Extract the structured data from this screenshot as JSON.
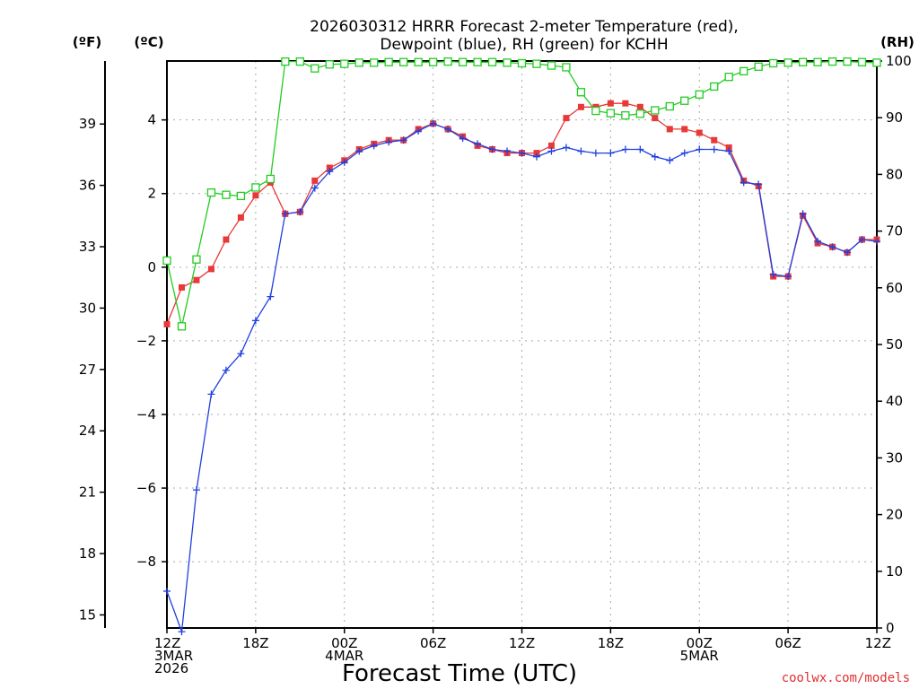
{
  "chart_data": {
    "type": "line",
    "title_line1": "2026030312 HRRR Forecast 2-meter Temperature (red),",
    "title_line2": "Dewpoint (blue), RH (green) for KCHH",
    "xlabel": "Forecast Time (UTC)",
    "credit": "coolwx.com/models",
    "left_unit_f": "(ºF)",
    "left_unit_c": "(ºC)",
    "right_unit": "(RH)",
    "x_range_hours": [
      0,
      48
    ],
    "celsius_range": [
      -9.8,
      5.6
    ],
    "rh_range": [
      0,
      100
    ],
    "x_ticks": [
      {
        "hour": 0,
        "line1": "12Z",
        "line2": "3MAR",
        "line3": "2026"
      },
      {
        "hour": 6,
        "line1": "18Z",
        "line2": "",
        "line3": ""
      },
      {
        "hour": 12,
        "line1": "00Z",
        "line2": "4MAR",
        "line3": ""
      },
      {
        "hour": 18,
        "line1": "06Z",
        "line2": "",
        "line3": ""
      },
      {
        "hour": 24,
        "line1": "12Z",
        "line2": "",
        "line3": ""
      },
      {
        "hour": 30,
        "line1": "18Z",
        "line2": "",
        "line3": ""
      },
      {
        "hour": 36,
        "line1": "00Z",
        "line2": "5MAR",
        "line3": ""
      },
      {
        "hour": 42,
        "line1": "06Z",
        "line2": "",
        "line3": ""
      },
      {
        "hour": 48,
        "line1": "12Z",
        "line2": "",
        "line3": ""
      }
    ],
    "celsius_ticks": [
      {
        "value": 4,
        "label": "4"
      },
      {
        "value": 2,
        "label": "2"
      },
      {
        "value": 0,
        "label": "0"
      },
      {
        "value": -2,
        "label": "−2"
      },
      {
        "value": -4,
        "label": "−4"
      },
      {
        "value": -6,
        "label": "−6"
      },
      {
        "value": -8,
        "label": "−8"
      }
    ],
    "fahrenheit_ticks": [
      {
        "value": 39,
        "label": "39"
      },
      {
        "value": 36,
        "label": "36"
      },
      {
        "value": 33,
        "label": "33"
      },
      {
        "value": 30,
        "label": "30"
      },
      {
        "value": 27,
        "label": "27"
      },
      {
        "value": 24,
        "label": "24"
      },
      {
        "value": 21,
        "label": "21"
      },
      {
        "value": 18,
        "label": "18"
      },
      {
        "value": 15,
        "label": "15"
      }
    ],
    "rh_ticks": [
      {
        "value": 100,
        "label": "100"
      },
      {
        "value": 90,
        "label": "90"
      },
      {
        "value": 80,
        "label": "80"
      },
      {
        "value": 70,
        "label": "70"
      },
      {
        "value": 60,
        "label": "60"
      },
      {
        "value": 50,
        "label": "50"
      },
      {
        "value": 40,
        "label": "40"
      },
      {
        "value": 30,
        "label": "30"
      },
      {
        "value": 20,
        "label": "20"
      },
      {
        "value": 10,
        "label": "10"
      },
      {
        "value": 0,
        "label": "0"
      }
    ],
    "series": [
      {
        "name": "Temperature",
        "units": "C",
        "color": "#e83838",
        "marker": "filled-square",
        "values": [
          -1.55,
          -0.55,
          -0.35,
          -0.05,
          0.75,
          1.35,
          1.95,
          2.3,
          1.45,
          1.5,
          2.35,
          2.7,
          2.9,
          3.2,
          3.35,
          3.45,
          3.45,
          3.75,
          3.9,
          3.75,
          3.55,
          3.3,
          3.2,
          3.1,
          3.1,
          3.1,
          3.3,
          4.05,
          4.35,
          4.35,
          4.45,
          4.45,
          4.35,
          4.05,
          3.75,
          3.75,
          3.65,
          3.45,
          3.25,
          2.35,
          2.2,
          -0.25,
          -0.25,
          1.4,
          0.65,
          0.55,
          0.4,
          0.75,
          0.75
        ]
      },
      {
        "name": "Dewpoint",
        "units": "C",
        "color": "#2040e0",
        "marker": "plus",
        "values": [
          -8.8,
          -9.9,
          -6.05,
          -3.45,
          -2.8,
          -2.35,
          -1.45,
          -0.8,
          1.45,
          1.5,
          2.15,
          2.6,
          2.85,
          3.15,
          3.3,
          3.4,
          3.45,
          3.7,
          3.9,
          3.75,
          3.5,
          3.35,
          3.2,
          3.15,
          3.1,
          3.0,
          3.15,
          3.25,
          3.15,
          3.1,
          3.1,
          3.2,
          3.2,
          3.0,
          2.9,
          3.1,
          3.2,
          3.2,
          3.15,
          2.3,
          2.25,
          -0.2,
          -0.25,
          1.45,
          0.7,
          0.55,
          0.4,
          0.75,
          0.7
        ]
      },
      {
        "name": "RH",
        "units": "%",
        "color": "#22cc22",
        "marker": "open-square",
        "values": [
          64.8,
          53.2,
          65.0,
          76.8,
          76.4,
          76.2,
          77.7,
          79.2,
          99.9,
          99.9,
          98.7,
          99.4,
          99.5,
          99.7,
          99.7,
          99.8,
          99.8,
          99.8,
          99.8,
          99.9,
          99.8,
          99.8,
          99.8,
          99.7,
          99.6,
          99.5,
          99.2,
          98.9,
          94.5,
          91.2,
          90.8,
          90.4,
          90.7,
          91.3,
          92.0,
          93.0,
          94.1,
          95.5,
          97.2,
          98.2,
          99.0,
          99.6,
          99.7,
          99.8,
          99.8,
          99.9,
          99.9,
          99.8,
          99.7
        ]
      }
    ]
  }
}
